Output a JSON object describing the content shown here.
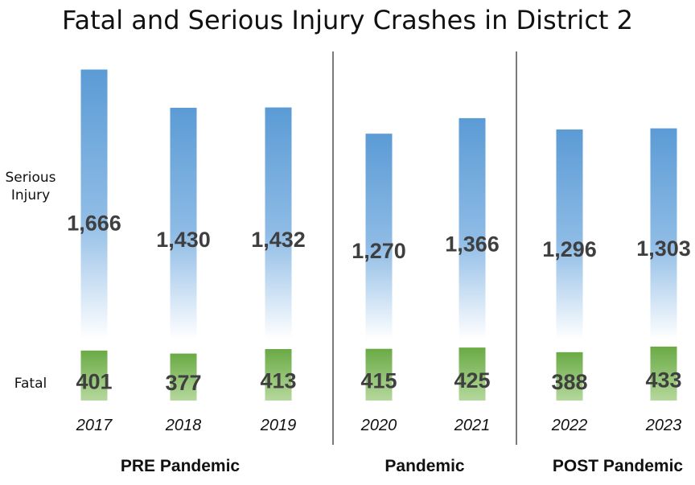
{
  "chart_data": {
    "type": "bar",
    "title": "Fatal and Serious Injury Crashes in District 2",
    "row_labels": {
      "serious": [
        "Serious",
        "Injury"
      ],
      "fatal": "Fatal"
    },
    "categories": [
      "2017",
      "2018",
      "2019",
      "2020",
      "2021",
      "2022",
      "2023"
    ],
    "series": [
      {
        "name": "Serious Injury",
        "values": [
          1666,
          1430,
          1432,
          1270,
          1366,
          1296,
          1303
        ],
        "labels": [
          "1,666",
          "1,430",
          "1,432",
          "1,270",
          "1,366",
          "1,296",
          "1,303"
        ]
      },
      {
        "name": "Fatal",
        "values": [
          401,
          377,
          413,
          415,
          425,
          388,
          433
        ],
        "labels": [
          "401",
          "377",
          "413",
          "415",
          "425",
          "388",
          "433"
        ]
      }
    ],
    "groups": [
      {
        "label": "PRE Pandemic",
        "categories": [
          "2017",
          "2018",
          "2019"
        ]
      },
      {
        "label": "Pandemic",
        "categories": [
          "2020",
          "2021"
        ]
      },
      {
        "label": "POST Pandemic",
        "categories": [
          "2022",
          "2023"
        ]
      }
    ],
    "colors": {
      "serious_top": "#5b9bd5",
      "serious_bottom": "#ffffff",
      "fatal_top": "#70ad47",
      "fatal_bottom": "#a9d18e",
      "value_text": "#3f3f3f"
    },
    "grid": false,
    "legend": "none"
  }
}
